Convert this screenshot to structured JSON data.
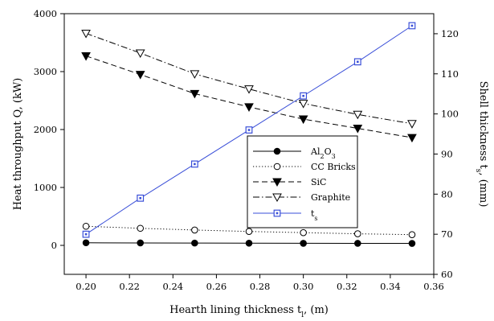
{
  "chart_data": {
    "type": "line",
    "x": [
      0.2,
      0.225,
      0.25,
      0.275,
      0.3,
      0.325,
      0.35
    ],
    "xlabel_parts": [
      "Hearth lining thickness t",
      "l",
      ", (m)"
    ],
    "ylabel_parts": [
      "Heat throughput Q, (kW)"
    ],
    "y2label_parts": [
      "Shell thickness t",
      "s",
      ", (mm)"
    ],
    "xlim": [
      0.19,
      0.36
    ],
    "ylim": [
      -500,
      4000
    ],
    "y2lim": [
      60,
      125
    ],
    "xticks": [
      "0.20",
      "0.22",
      "0.24",
      "0.26",
      "0.28",
      "0.30",
      "0.32",
      "0.34",
      "0.36"
    ],
    "xtick_values": [
      0.2,
      0.22,
      0.24,
      0.26,
      0.28,
      0.3,
      0.32,
      0.34,
      0.36
    ],
    "yticks": [
      "0",
      "1000",
      "2000",
      "3000",
      "4000"
    ],
    "ytick_values": [
      0,
      1000,
      2000,
      3000,
      4000
    ],
    "y2ticks": [
      "60",
      "70",
      "80",
      "90",
      "100",
      "110",
      "120"
    ],
    "y2tick_values": [
      60,
      70,
      80,
      90,
      100,
      110,
      120
    ],
    "legend_position": "center-right",
    "series": [
      {
        "name_parts": [
          "Al",
          "2",
          "O",
          "3"
        ],
        "axis": "left",
        "marker": "filled-circle",
        "dash": "solid",
        "color": "#000000",
        "values": [
          45,
          42,
          40,
          38,
          36,
          35,
          34
        ]
      },
      {
        "name_parts": [
          "CC Bricks"
        ],
        "axis": "left",
        "marker": "open-circle",
        "dash": "dotted",
        "color": "#000000",
        "values": [
          330,
          295,
          265,
          240,
          220,
          200,
          185
        ]
      },
      {
        "name_parts": [
          "SiC"
        ],
        "axis": "left",
        "marker": "filled-triangle-down",
        "dash": "dashed",
        "color": "#000000",
        "values": [
          3270,
          2950,
          2620,
          2390,
          2180,
          2020,
          1860
        ]
      },
      {
        "name_parts": [
          "Graphite"
        ],
        "axis": "left",
        "marker": "open-triangle-down",
        "dash": "dash-dot",
        "color": "#000000",
        "values": [
          3660,
          3320,
          2960,
          2700,
          2450,
          2260,
          2100
        ]
      },
      {
        "name_parts": [
          "t",
          "s"
        ],
        "axis": "right",
        "marker": "square-dot",
        "dash": "solid",
        "color": "#3a4fd8",
        "values": [
          70,
          79,
          87.5,
          96,
          104.5,
          113,
          122
        ]
      }
    ]
  }
}
